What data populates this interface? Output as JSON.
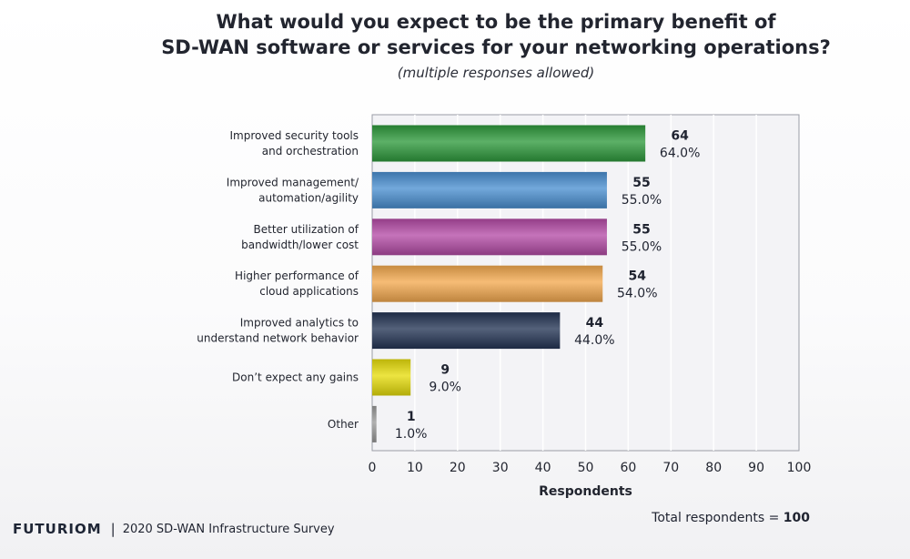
{
  "title_line1": "What would you expect to be the primary benefit of",
  "title_line2": "SD-WAN software or services for your networking operations?",
  "subtitle": "(multiple responses allowed)",
  "footer": {
    "brand": "FUTURIOM",
    "separator": "|",
    "survey": "2020 SD-WAN Infrastructure Survey"
  },
  "total": {
    "label": "Total respondents =",
    "value": "100"
  },
  "chart_data": {
    "type": "bar",
    "orientation": "horizontal",
    "categories": [
      [
        "Improved security tools",
        "and orchestration"
      ],
      [
        "Improved management/",
        "automation/agility"
      ],
      [
        "Better utilization of",
        "bandwidth/lower cost"
      ],
      [
        "Higher performance of",
        "cloud applications"
      ],
      [
        "Improved analytics to",
        "understand network behavior"
      ],
      [
        "Don’t expect any gains"
      ],
      [
        "Other"
      ]
    ],
    "values": [
      64,
      55,
      55,
      54,
      44,
      9,
      1
    ],
    "percent_labels": [
      "64.0%",
      "55.0%",
      "55.0%",
      "54.0%",
      "44.0%",
      "9.0%",
      "1.0%"
    ],
    "colors": [
      "#2e9a3c",
      "#4a8fd1",
      "#b44ca6",
      "#f3a94f",
      "#243554",
      "#e6dd0c",
      "#9a9a9a"
    ],
    "xlabel": "Respondents",
    "xlim": [
      0,
      100
    ],
    "xticks": [
      0,
      10,
      20,
      30,
      40,
      50,
      60,
      70,
      80,
      90,
      100
    ],
    "grid": true
  }
}
